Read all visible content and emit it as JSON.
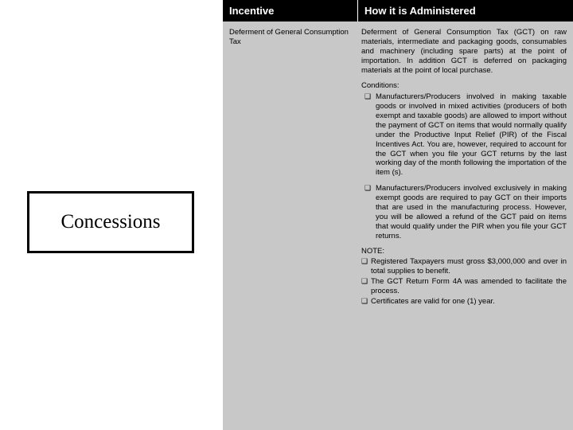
{
  "sidebar": {
    "title": "Concessions"
  },
  "table": {
    "headers": {
      "incentive": "Incentive",
      "admin": "How it is Administered"
    },
    "row": {
      "incentive": "Deferment of General Consumption Tax",
      "admin_main": "Deferment of General Consumption Tax (GCT) on raw materials, intermediate and packaging goods, consumables and machinery (including spare parts) at the point of importation. In addition GCT is deferred on packaging materials at the point of local purchase.",
      "conditions_label": "Conditions:",
      "bullets": [
        "Manufacturers/Producers involved in making taxable goods or involved in mixed activities (producers of both exempt and taxable goods) are allowed to import without the payment of GCT on items that would normally qualify under the Productive Input Relief (PIR) of the Fiscal Incentives Act. You are, however, required to account for the GCT when you file your GCT returns by the last working day of the month following the importation of the item (s).",
        "Manufacturers/Producers involved exclusively in making exempt goods are required to pay GCT on their imports that are used in the manufacturing process. However, you will be allowed a refund of the GCT paid on items that would qualify under the PIR when you file your GCT returns."
      ],
      "note_label": "NOTE:",
      "notes": [
        "Registered Taxpayers must gross $3,000,000 and over in total supplies to benefit.",
        "The GCT Return Form 4A was amended to facilitate the process.",
        "Certificates are valid for one (1) year."
      ]
    }
  }
}
